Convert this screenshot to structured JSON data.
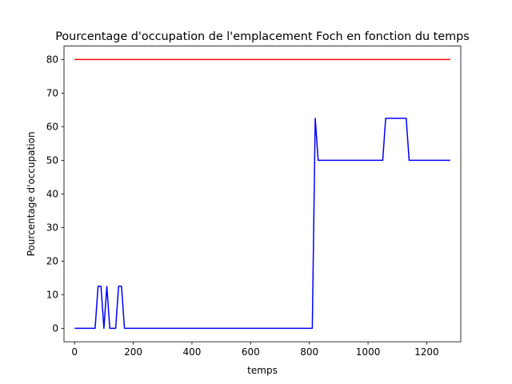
{
  "chart_data": {
    "type": "line",
    "title": "Pourcentage d'occupation de l'emplacement Foch en fonction du temps",
    "xlabel": "temps",
    "ylabel": "Pourcentage d'occupation",
    "xlim": [
      -36,
      1316
    ],
    "ylim": [
      -4,
      84
    ],
    "xticks": [
      0,
      200,
      400,
      600,
      800,
      1000,
      1200
    ],
    "yticks": [
      0,
      10,
      20,
      30,
      40,
      50,
      60,
      70,
      80
    ],
    "grid": false,
    "series": [
      {
        "color": "#ff0000",
        "x": [
          0,
          1280
        ],
        "y": [
          80,
          80
        ]
      },
      {
        "color": "#0000ff",
        "x": [
          0,
          70,
          80,
          90,
          100,
          110,
          120,
          140,
          150,
          160,
          170,
          200,
          400,
          600,
          810,
          820,
          830,
          850,
          1000,
          1050,
          1060,
          1080,
          1100,
          1130,
          1140,
          1200,
          1280
        ],
        "y": [
          0,
          0,
          12.5,
          12.5,
          0,
          12.5,
          0,
          0,
          12.5,
          12.5,
          0,
          0,
          0,
          0,
          0,
          62.5,
          50,
          50,
          50,
          50,
          62.5,
          62.5,
          62.5,
          62.5,
          50,
          50,
          50
        ]
      }
    ]
  }
}
